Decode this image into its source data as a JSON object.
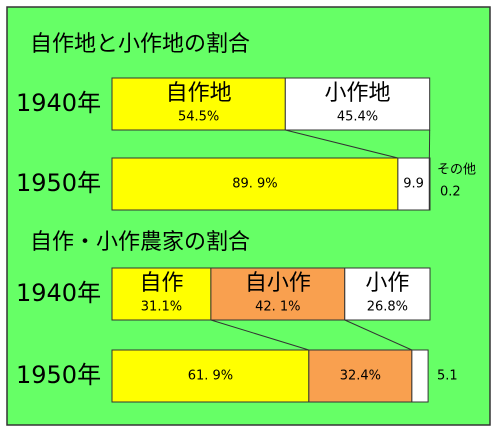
{
  "chart_data": [
    {
      "type": "bar",
      "orientation": "horizontal",
      "stacked": true,
      "title": "自作地と小作地の割合",
      "categories": [
        "1940年",
        "1950年"
      ],
      "xlim": [
        0,
        100
      ],
      "series": [
        {
          "name": "自作地",
          "color": "#ffff00",
          "values": [
            54.5,
            89.9
          ],
          "value_labels": [
            "54.5%",
            "89. 9%"
          ]
        },
        {
          "name": "小作地",
          "color": "#ffffff",
          "values": [
            45.4,
            9.9
          ],
          "value_labels": [
            "45.4%",
            "9.9"
          ]
        },
        {
          "name": "その他",
          "color": "#ffffff",
          "values": [
            null,
            0.2
          ],
          "value_labels": [
            null,
            "0.2"
          ]
        }
      ]
    },
    {
      "type": "bar",
      "orientation": "horizontal",
      "stacked": true,
      "title": "自作・小作農家の割合",
      "categories": [
        "1940年",
        "1950年"
      ],
      "xlim": [
        0,
        100
      ],
      "series": [
        {
          "name": "自作",
          "color": "#ffff00",
          "values": [
            31.1,
            61.9
          ],
          "value_labels": [
            "31.1%",
            "61. 9%"
          ]
        },
        {
          "name": "自小作",
          "color": "#f9a04f",
          "values": [
            42.1,
            32.4
          ],
          "value_labels": [
            "42. 1%",
            "32.4%"
          ]
        },
        {
          "name": "小作",
          "color": "#ffffff",
          "values": [
            26.8,
            5.1
          ],
          "value_labels": [
            "26.8%",
            "5.1"
          ]
        }
      ]
    }
  ]
}
